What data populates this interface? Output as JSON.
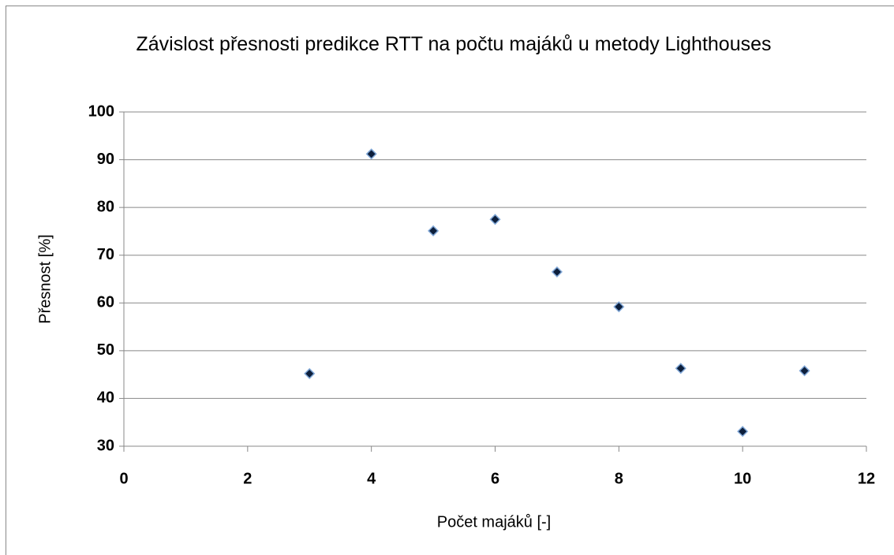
{
  "chart_data": {
    "type": "scatter",
    "title": "Závislost přesnosti predikce RTT na počtu majáků u metody Lighthouses",
    "xlabel": "Počet majáků [-]",
    "ylabel": "Přesnost [%]",
    "x": [
      3,
      4,
      5,
      6,
      7,
      8,
      9,
      10,
      11
    ],
    "series": [
      {
        "color": "#0d1f3c",
        "values": [
          45.2,
          91.2,
          75.1,
          77.5,
          66.5,
          59.2,
          46.3,
          33.1,
          45.8
        ]
      }
    ],
    "xlim": [
      0,
      12
    ],
    "xticks": [
      0,
      2,
      4,
      6,
      8,
      10,
      12
    ],
    "ylim": [
      30,
      100
    ],
    "yticks": [
      30,
      40,
      50,
      60,
      70,
      80,
      90,
      100
    ],
    "grid": true
  }
}
